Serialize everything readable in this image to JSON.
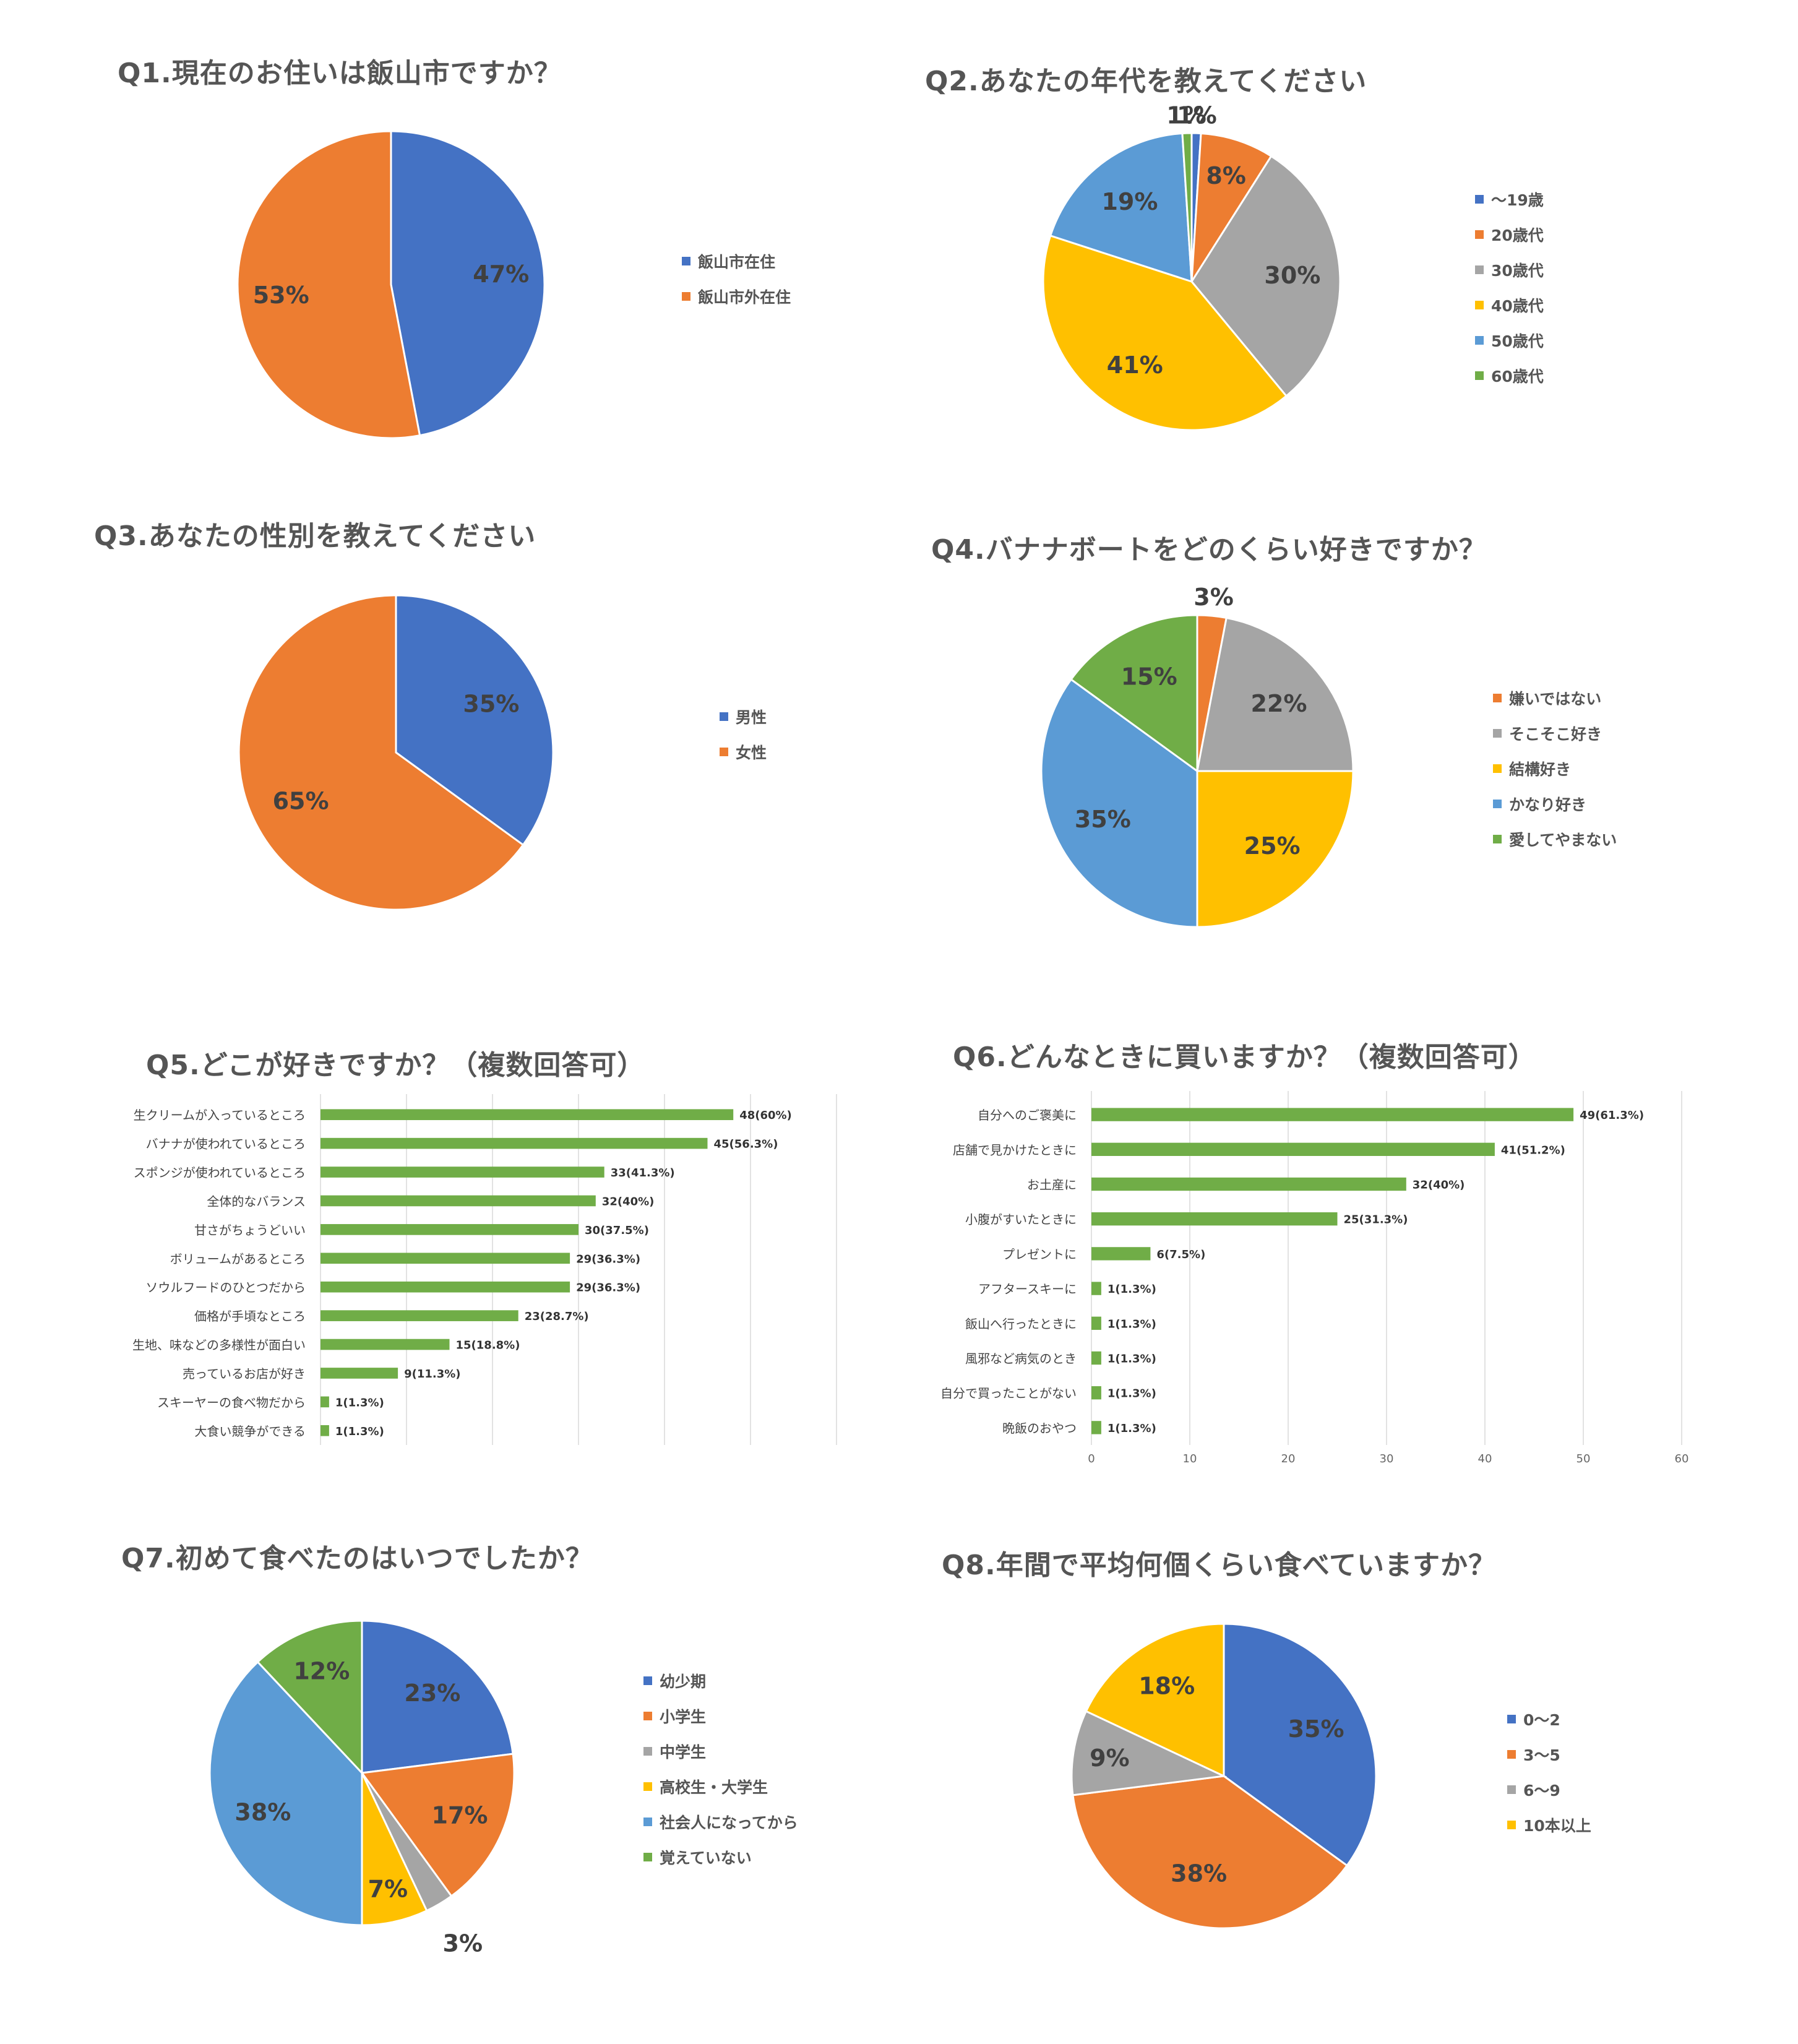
{
  "chart_data": [
    {
      "type": "pie",
      "title": "Q1.現在のお住いは飯山市ですか？",
      "categories": [
        "飯山市在住",
        "飯山市外在住"
      ],
      "values": [
        47,
        53
      ],
      "data_labels": [
        "47%",
        "53%"
      ],
      "colors": [
        "#4472C4",
        "#ED7D31"
      ],
      "legend_position": "right"
    },
    {
      "type": "pie",
      "title": "Q2.あなたの年代を教えてください",
      "categories": [
        "〜19歳",
        "20歳代",
        "30歳代",
        "40歳代",
        "50歳代",
        "60歳代"
      ],
      "values": [
        1,
        8,
        30,
        41,
        19,
        1
      ],
      "data_labels": [
        "1%",
        "8%",
        "30%",
        "41%",
        "19%",
        "1%"
      ],
      "colors": [
        "#4472C4",
        "#ED7D31",
        "#A5A5A5",
        "#FFC000",
        "#5B9BD5",
        "#70AD47"
      ],
      "legend_position": "right"
    },
    {
      "type": "pie",
      "title": "Q3.あなたの性別を教えてください",
      "categories": [
        "男性",
        "女性"
      ],
      "values": [
        35,
        65
      ],
      "data_labels": [
        "35%",
        "65%"
      ],
      "colors": [
        "#4472C4",
        "#ED7D31"
      ],
      "legend_position": "right"
    },
    {
      "type": "pie",
      "title": "Q4.バナナボートをどのくらい好きですか？",
      "categories": [
        "嫌いではない",
        "そこそこ好き",
        "結構好き",
        "かなり好き",
        "愛してやまない"
      ],
      "values": [
        3,
        22,
        25,
        35,
        15
      ],
      "data_labels": [
        "3%",
        "22%",
        "25%",
        "35%",
        "15%"
      ],
      "colors": [
        "#ED7D31",
        "#A5A5A5",
        "#FFC000",
        "#5B9BD5",
        "#70AD47"
      ],
      "legend_position": "right"
    },
    {
      "type": "bar",
      "orientation": "horizontal",
      "title": "Q5.どこが好きですか？（複数回答可）",
      "categories": [
        "生クリームが入っているところ",
        "バナナが使われているところ",
        "スポンジが使われているところ",
        "全体的なバランス",
        "甘さがちょうどいい",
        "ボリュームがあるところ",
        "ソウルフードのひとつだから",
        "価格が手頃なところ",
        "生地、味などの多様性が面白い",
        "売っているお店が好き",
        "スキーヤーの食べ物だから",
        "大食い競争ができる"
      ],
      "values": [
        48,
        45,
        33,
        32,
        30,
        29,
        29,
        23,
        15,
        9,
        1,
        1
      ],
      "data_labels": [
        "48(60%)",
        "45(56.3%)",
        "33(41.3%)",
        "32(40%)",
        "30(37.5%)",
        "29(36.3%)",
        "29(36.3%)",
        "23(28.7%)",
        "15(18.8%)",
        "9(11.3%)",
        "1(1.3%)",
        "1(1.3%)"
      ],
      "xlim": [
        0,
        60
      ],
      "xticks": [],
      "grid": true,
      "color": "#70AD47"
    },
    {
      "type": "bar",
      "orientation": "horizontal",
      "title": "Q6.どんなときに買いますか？（複数回答可）",
      "categories": [
        "自分へのご褒美に",
        "店舗で見かけたときに",
        "お土産に",
        "小腹がすいたときに",
        "プレゼントに",
        "アフタースキーに",
        "飯山へ行ったときに",
        "風邪など病気のとき",
        "自分で買ったことがない",
        "晩飯のおやつ"
      ],
      "values": [
        49,
        41,
        32,
        25,
        6,
        1,
        1,
        1,
        1,
        1
      ],
      "data_labels": [
        "49(61.3%)",
        "41(51.2%)",
        "32(40%)",
        "25(31.3%)",
        "6(7.5%)",
        "1(1.3%)",
        "1(1.3%)",
        "1(1.3%)",
        "1(1.3%)",
        "1(1.3%)"
      ],
      "xlim": [
        0,
        60
      ],
      "xticks": [
        "0",
        "10",
        "20",
        "30",
        "40",
        "50",
        "60"
      ],
      "grid": true,
      "color": "#70AD47"
    },
    {
      "type": "pie",
      "title": "Q7.初めて食べたのはいつでしたか？",
      "categories": [
        "幼少期",
        "小学生",
        "中学生",
        "高校生・大学生",
        "社会人になってから",
        "覚えていない"
      ],
      "values": [
        23,
        17,
        3,
        7,
        38,
        12
      ],
      "data_labels": [
        "23%",
        "17%",
        "3%",
        "7%",
        "38%",
        "12%"
      ],
      "colors": [
        "#4472C4",
        "#ED7D31",
        "#A5A5A5",
        "#FFC000",
        "#5B9BD5",
        "#70AD47"
      ],
      "legend_position": "right"
    },
    {
      "type": "pie",
      "title": "Q8.年間で平均何個くらい食べていますか？",
      "categories": [
        "0〜2",
        "3〜5",
        "6〜9",
        "10本以上"
      ],
      "values": [
        35,
        38,
        9,
        18
      ],
      "data_labels": [
        "35%",
        "38%",
        "9%",
        "18%"
      ],
      "colors": [
        "#4472C4",
        "#ED7D31",
        "#A5A5A5",
        "#FFC000"
      ],
      "legend_position": "right"
    }
  ]
}
